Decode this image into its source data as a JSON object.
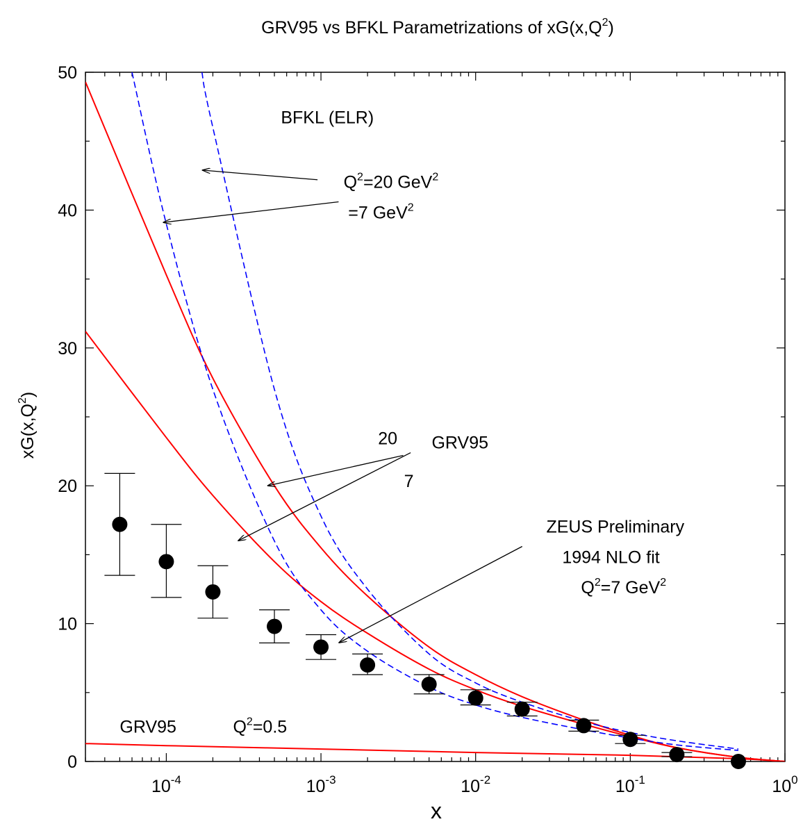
{
  "chart_data": {
    "type": "scatter",
    "title": "GRV95 vs BFKL  Parametrizations of xG(x,Q",
    "title_sup": "2",
    "title_end": ")",
    "xlabel": "x",
    "ylabel": "xG(x,Q",
    "ylabel_sup": "2",
    "ylabel_end": ")",
    "x_scale": "log",
    "xlim": [
      3e-05,
      1
    ],
    "ylim": [
      0,
      50
    ],
    "grid": false,
    "legend": "none",
    "x_ticks": [
      {
        "value": 0.0001,
        "base": "10",
        "exp": "-4"
      },
      {
        "value": 0.001,
        "base": "10",
        "exp": "-3"
      },
      {
        "value": 0.01,
        "base": "10",
        "exp": "-2"
      },
      {
        "value": 0.1,
        "base": "10",
        "exp": "-1"
      },
      {
        "value": 1,
        "base": "10",
        "exp": "0"
      }
    ],
    "y_ticks": [
      0,
      10,
      20,
      30,
      40,
      50
    ],
    "colors": {
      "grv95": "#ff0000",
      "bfkl": "#0000ff",
      "data": "#000000"
    },
    "points": {
      "x": [
        5e-05,
        0.0001,
        0.0002,
        0.0005,
        0.001,
        0.002,
        0.005,
        0.01,
        0.02,
        0.05,
        0.1,
        0.2,
        0.5
      ],
      "y": [
        17.2,
        14.5,
        12.3,
        9.8,
        8.3,
        7.0,
        5.6,
        4.6,
        3.8,
        2.6,
        1.6,
        0.5,
        0.0
      ],
      "err_low": [
        13.5,
        11.9,
        10.4,
        8.6,
        7.4,
        6.3,
        4.9,
        4.1,
        3.3,
        2.2,
        1.3,
        0.35,
        0.0
      ],
      "err_high": [
        20.9,
        17.2,
        14.2,
        11.0,
        9.2,
        7.8,
        6.3,
        5.2,
        4.3,
        3.0,
        1.9,
        0.65,
        0.0
      ]
    },
    "series": [
      {
        "style": "solid",
        "color": "#ff0000",
        "x": [
          3e-05,
          0.0001,
          0.0002,
          0.0005,
          0.001,
          0.002,
          0.005,
          0.01,
          0.02,
          0.05,
          0.1,
          0.2,
          0.5,
          1
        ],
        "y": [
          49.3,
          35.3,
          27.8,
          20.0,
          15.5,
          12.0,
          8.3,
          6.3,
          4.7,
          3.0,
          1.9,
          1.0,
          0.3,
          0.0
        ]
      },
      {
        "style": "solid",
        "color": "#ff0000",
        "x": [
          3e-05,
          0.0001,
          0.0002,
          0.0005,
          0.001,
          0.002,
          0.005,
          0.01,
          0.02,
          0.05,
          0.1,
          0.2,
          0.5,
          1
        ],
        "y": [
          31.2,
          23.5,
          19.3,
          14.5,
          11.6,
          9.3,
          6.7,
          5.2,
          4.0,
          2.7,
          1.8,
          1.0,
          0.3,
          0.0
        ]
      },
      {
        "style": "solid",
        "color": "#ff0000",
        "x": [
          3e-05,
          0.0001,
          0.001,
          0.01,
          0.1,
          0.5,
          1
        ],
        "y": [
          1.3,
          1.15,
          0.9,
          0.65,
          0.45,
          0.2,
          0.0
        ]
      },
      {
        "style": "dashed",
        "color": "#0000ff",
        "x": [
          0.00017,
          0.0002,
          0.0005,
          0.001,
          0.002,
          0.005,
          0.01,
          0.02,
          0.05,
          0.1,
          0.2,
          0.5
        ],
        "y": [
          50,
          46.0,
          27.0,
          17.8,
          12.5,
          7.8,
          5.7,
          4.3,
          2.9,
          2.1,
          1.5,
          0.9
        ]
      },
      {
        "style": "dashed",
        "color": "#0000ff",
        "x": [
          6e-05,
          0.0001,
          0.0002,
          0.0005,
          0.001,
          0.002,
          0.005,
          0.01,
          0.02,
          0.05,
          0.1,
          0.2,
          0.5
        ],
        "y": [
          50,
          39.0,
          27.0,
          16.0,
          11.0,
          8.0,
          5.4,
          4.1,
          3.2,
          2.3,
          1.7,
          1.2,
          0.8
        ]
      }
    ],
    "annotations": [
      {
        "key": "bfkl",
        "text": "BFKL  (ELR)",
        "tx": 0.0011,
        "ty": 46.3,
        "anchor": "middle",
        "size": 25
      },
      {
        "key": "q20",
        "text": "Q",
        "sup": "2",
        "rest": "=20 GeV",
        "sup2": "2",
        "tx": 0.0014,
        "ty": 41.6,
        "anchor": "start",
        "size": 25,
        "arrow": {
          "from_x": 0.00095,
          "from_y": 42.2,
          "to_x": 0.00017,
          "to_y": 42.9
        }
      },
      {
        "key": "q7",
        "text": "=7 GeV",
        "sup": "2",
        "tx": 0.0015,
        "ty": 39.4,
        "anchor": "start",
        "size": 25,
        "arrow": {
          "from_x": 0.0013,
          "from_y": 40.6,
          "to_x": 9.5e-05,
          "to_y": 39.1
        }
      },
      {
        "key": "grv95",
        "text": "GRV95",
        "tx": 0.0052,
        "ty": 22.7,
        "anchor": "start",
        "size": 25
      },
      {
        "key": "n20",
        "text": "20",
        "tx": 0.0027,
        "ty": 23.0,
        "anchor": "middle",
        "size": 25,
        "arrow": {
          "from_x": 0.0034,
          "from_y": 22.2,
          "to_x": 0.00045,
          "to_y": 20.0
        }
      },
      {
        "key": "n7",
        "text": "7",
        "tx": 0.0037,
        "ty": 19.9,
        "anchor": "middle",
        "size": 25,
        "arrow": {
          "from_x": 0.0038,
          "from_y": 22.4,
          "to_x": 0.00029,
          "to_y": 16.0
        }
      },
      {
        "key": "zeus1",
        "text": "ZEUS Preliminary",
        "tx": 0.08,
        "ty": 16.6,
        "anchor": "middle",
        "size": 25,
        "arrow": {
          "from_x": 0.02,
          "from_y": 15.6,
          "to_x": 0.0013,
          "to_y": 8.6
        }
      },
      {
        "key": "zeus2",
        "text": "1994 NLO fit",
        "tx": 0.075,
        "ty": 14.4,
        "anchor": "middle",
        "size": 25
      },
      {
        "key": "zeus3",
        "text": "Q",
        "sup": "2",
        "rest": "=7 GeV",
        "sup2": "2",
        "tx": 0.048,
        "ty": 12.2,
        "anchor": "start",
        "size": 25
      },
      {
        "key": "grvlow1",
        "text": "GRV95",
        "tx": 5e-05,
        "ty": 2.1,
        "anchor": "start",
        "size": 25
      },
      {
        "key": "grvlow2",
        "text": "Q",
        "sup": "2",
        "rest": "=0.5",
        "tx": 0.00027,
        "ty": 2.1,
        "anchor": "start",
        "size": 25
      }
    ]
  }
}
